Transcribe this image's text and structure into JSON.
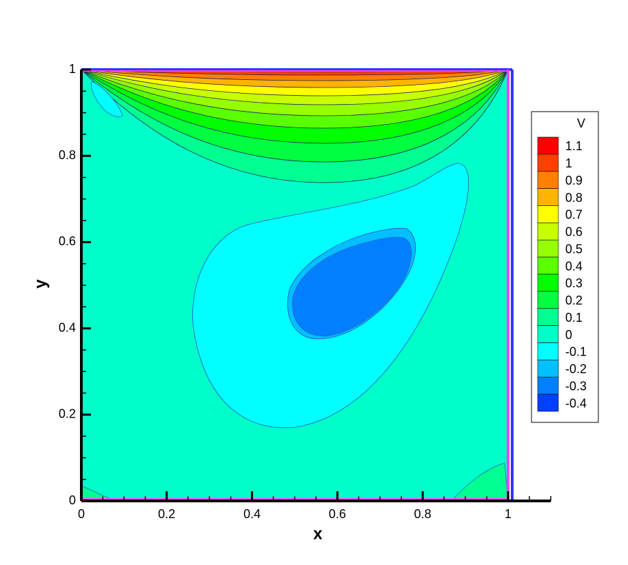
{
  "chart_data": {
    "type": "contour",
    "x_label": "x",
    "y_label": "y",
    "xlim": [
      0,
      1.1
    ],
    "xticks": [
      0,
      0.2,
      0.4,
      0.6,
      0.8,
      1
    ],
    "ylim": [
      0,
      1
    ],
    "yticks": [
      0,
      0.2,
      0.4,
      0.6,
      0.8,
      1
    ],
    "legend_title": "V",
    "levels": [
      1.1,
      1,
      0.9,
      0.8,
      0.7,
      0.6,
      0.5,
      0.4,
      0.3,
      0.2,
      0.1,
      0,
      -0.1,
      -0.2,
      -0.3,
      -0.4
    ],
    "colors": [
      "#ff0000",
      "#ff4000",
      "#ff8000",
      "#ffb400",
      "#ffff00",
      "#c8ff00",
      "#96ff00",
      "#5aff00",
      "#00ff00",
      "#00ff40",
      "#00ff90",
      "#00ffc8",
      "#00ffff",
      "#00c0ff",
      "#0080ff",
      "#0040ff"
    ]
  }
}
